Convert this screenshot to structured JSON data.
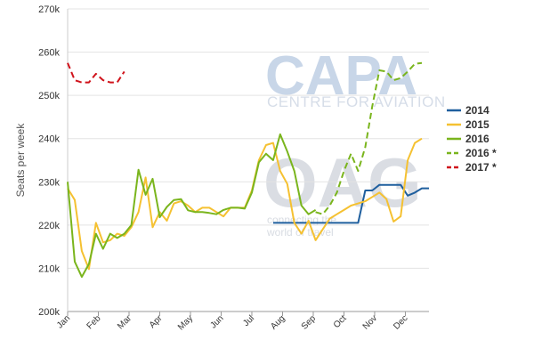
{
  "chart_data": {
    "type": "line",
    "title": "",
    "xlabel": "",
    "ylabel": "Seats per week",
    "ylim": [
      200000,
      270000
    ],
    "yticks": [
      200000,
      210000,
      220000,
      230000,
      240000,
      250000,
      260000,
      270000
    ],
    "ytick_labels": [
      "200k",
      "210k",
      "220k",
      "230k",
      "240k",
      "250k",
      "260k",
      "270k"
    ],
    "x_ticks": [
      "Jan",
      "Feb",
      "Mar",
      "Apr",
      "May",
      "Jun",
      "Jul",
      "Aug",
      "Sep",
      "Oct",
      "Nov",
      "Dec"
    ],
    "x_unit": "week of year",
    "grid": true,
    "legend_position": "right",
    "watermark": {
      "brand": "CAPA",
      "brand_sub": "CENTRE FOR AVIATION",
      "oag": "OAG",
      "oag_sub1": "connecting the",
      "oag_sub2": "world of travel"
    },
    "series": [
      {
        "name": "2014",
        "color": "#1f5f9e",
        "dash": "solid",
        "points": [
          [
            29,
            220500
          ],
          [
            30,
            220500
          ],
          [
            31,
            220500
          ],
          [
            32,
            220500
          ],
          [
            33,
            220500
          ],
          [
            34,
            220500
          ],
          [
            35,
            220500
          ],
          [
            36,
            220500
          ],
          [
            37,
            220500
          ],
          [
            38,
            220500
          ],
          [
            39,
            220500
          ],
          [
            40,
            220500
          ],
          [
            41,
            220500
          ],
          [
            42,
            228000
          ],
          [
            43,
            228000
          ],
          [
            44,
            229300
          ],
          [
            45,
            229300
          ],
          [
            46,
            229300
          ],
          [
            47,
            229300
          ],
          [
            48,
            226800
          ],
          [
            49,
            227500
          ],
          [
            50,
            228500
          ],
          [
            51,
            228500
          ]
        ]
      },
      {
        "name": "2015",
        "color": "#f5c131",
        "dash": "solid",
        "points": [
          [
            0,
            228500
          ],
          [
            1,
            225800
          ],
          [
            2,
            214000
          ],
          [
            3,
            209800
          ],
          [
            4,
            220500
          ],
          [
            5,
            216000
          ],
          [
            6,
            216500
          ],
          [
            7,
            218000
          ],
          [
            8,
            217500
          ],
          [
            9,
            219500
          ],
          [
            10,
            223000
          ],
          [
            11,
            231000
          ],
          [
            12,
            219500
          ],
          [
            13,
            223000
          ],
          [
            14,
            221000
          ],
          [
            15,
            225000
          ],
          [
            16,
            225500
          ],
          [
            17,
            224500
          ],
          [
            18,
            223000
          ],
          [
            19,
            224000
          ],
          [
            20,
            224000
          ],
          [
            21,
            223000
          ],
          [
            22,
            222000
          ],
          [
            23,
            224000
          ],
          [
            24,
            224000
          ],
          [
            25,
            224000
          ],
          [
            26,
            228000
          ],
          [
            27,
            235000
          ],
          [
            28,
            238500
          ],
          [
            29,
            239000
          ],
          [
            30,
            232500
          ],
          [
            31,
            229500
          ],
          [
            32,
            220500
          ],
          [
            33,
            218000
          ],
          [
            34,
            221000
          ],
          [
            35,
            216500
          ],
          [
            36,
            219000
          ],
          [
            37,
            221500
          ],
          [
            38,
            222500
          ],
          [
            39,
            223500
          ],
          [
            40,
            224500
          ],
          [
            41,
            225000
          ],
          [
            42,
            225500
          ],
          [
            43,
            226500
          ],
          [
            44,
            227500
          ],
          [
            45,
            226000
          ],
          [
            46,
            220800
          ],
          [
            47,
            222000
          ],
          [
            48,
            235000
          ],
          [
            49,
            239000
          ],
          [
            50,
            240000
          ]
        ]
      },
      {
        "name": "2016",
        "color": "#7ab51d",
        "dash": "solid",
        "points": [
          [
            0,
            230000
          ],
          [
            1,
            211500
          ],
          [
            2,
            208000
          ],
          [
            3,
            211000
          ],
          [
            4,
            218000
          ],
          [
            5,
            214500
          ],
          [
            6,
            218000
          ],
          [
            7,
            217000
          ],
          [
            8,
            218000
          ],
          [
            9,
            220000
          ],
          [
            10,
            232800
          ],
          [
            11,
            227000
          ],
          [
            12,
            230700
          ],
          [
            13,
            221800
          ],
          [
            14,
            224200
          ],
          [
            15,
            225800
          ],
          [
            16,
            226000
          ],
          [
            17,
            223400
          ],
          [
            18,
            223000
          ],
          [
            19,
            223000
          ],
          [
            20,
            222800
          ],
          [
            21,
            222500
          ],
          [
            22,
            223500
          ],
          [
            23,
            224000
          ],
          [
            24,
            224000
          ],
          [
            25,
            223800
          ],
          [
            26,
            227500
          ],
          [
            27,
            234500
          ],
          [
            28,
            236500
          ],
          [
            29,
            235000
          ],
          [
            30,
            241000
          ],
          [
            31,
            237000
          ],
          [
            32,
            232500
          ],
          [
            33,
            224500
          ],
          [
            34,
            222500
          ],
          [
            35,
            223500
          ]
        ]
      },
      {
        "name": "2016 *",
        "color": "#7ab51d",
        "dash": "dashed",
        "points": [
          [
            35,
            223000
          ],
          [
            36,
            222500
          ],
          [
            37,
            224500
          ],
          [
            38,
            227500
          ],
          [
            39,
            232500
          ],
          [
            40,
            236500
          ],
          [
            41,
            232500
          ],
          [
            42,
            238000
          ],
          [
            43,
            247500
          ],
          [
            44,
            255800
          ],
          [
            45,
            255500
          ],
          [
            46,
            253500
          ],
          [
            47,
            254000
          ],
          [
            48,
            255500
          ],
          [
            49,
            257300
          ],
          [
            50,
            257500
          ]
        ]
      },
      {
        "name": "2017 *",
        "color": "#d0131b",
        "dash": "dashed",
        "points": [
          [
            0,
            257500
          ],
          [
            1,
            253500
          ],
          [
            2,
            253000
          ],
          [
            3,
            253000
          ],
          [
            4,
            255000
          ],
          [
            5,
            253500
          ],
          [
            6,
            253000
          ],
          [
            7,
            253000
          ],
          [
            8,
            255500
          ]
        ]
      }
    ]
  }
}
